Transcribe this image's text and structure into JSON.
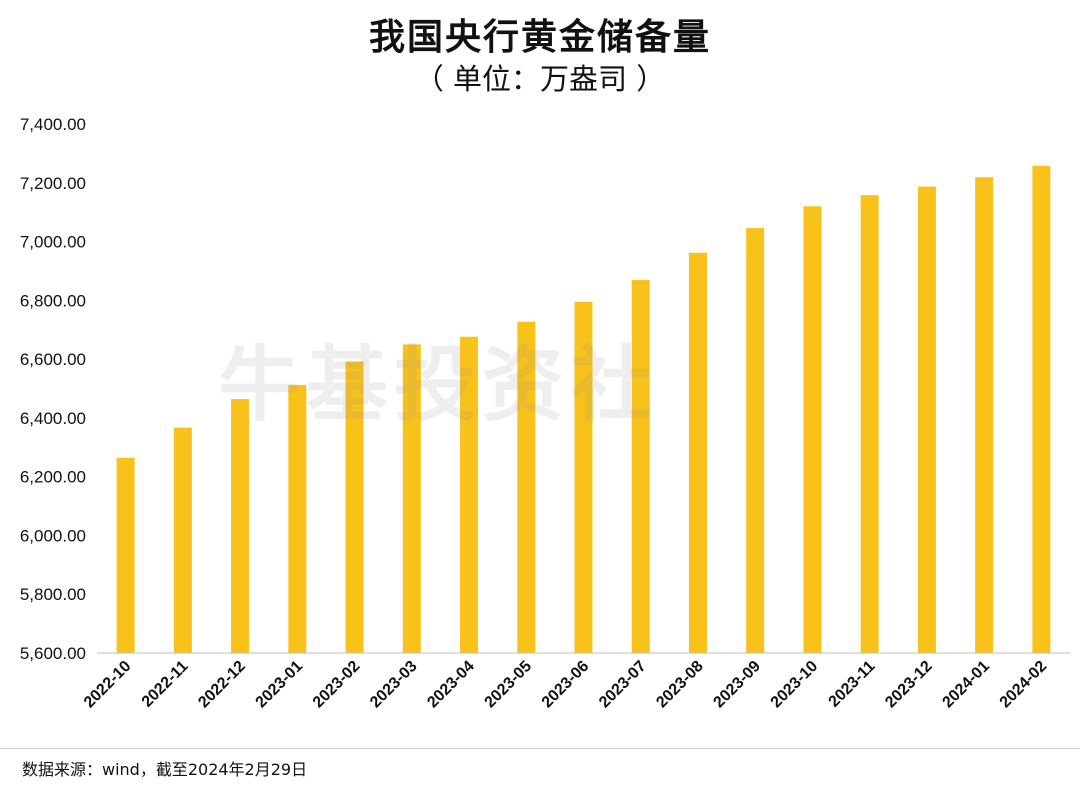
{
  "chart_data": {
    "type": "bar",
    "title": "我国央行黄金储备量",
    "subtitle": "（ 单位：万盎司 ）",
    "categories": [
      "2022-10",
      "2022-11",
      "2022-12",
      "2023-01",
      "2023-02",
      "2023-03",
      "2023-04",
      "2023-05",
      "2023-06",
      "2023-07",
      "2023-08",
      "2023-09",
      "2023-10",
      "2023-11",
      "2023-12",
      "2024-01",
      "2024-02"
    ],
    "values": [
      6264,
      6367,
      6464,
      6512,
      6592,
      6650,
      6676,
      6727,
      6795,
      6869,
      6962,
      7046,
      7120,
      7158,
      7187,
      7219,
      7258
    ],
    "ylim": [
      5600,
      7400
    ],
    "yticks": [
      "5,600.00",
      "5,800.00",
      "6,000.00",
      "6,200.00",
      "6,400.00",
      "6,600.00",
      "6,800.00",
      "7,000.00",
      "7,200.00",
      "7,400.00"
    ],
    "bar_color": "#F9C21B",
    "grid": false,
    "legend": "none",
    "xlabel": "",
    "ylabel": ""
  },
  "watermark": "牛基投资社",
  "source_note": "数据来源：wind，截至2024年2月29日"
}
